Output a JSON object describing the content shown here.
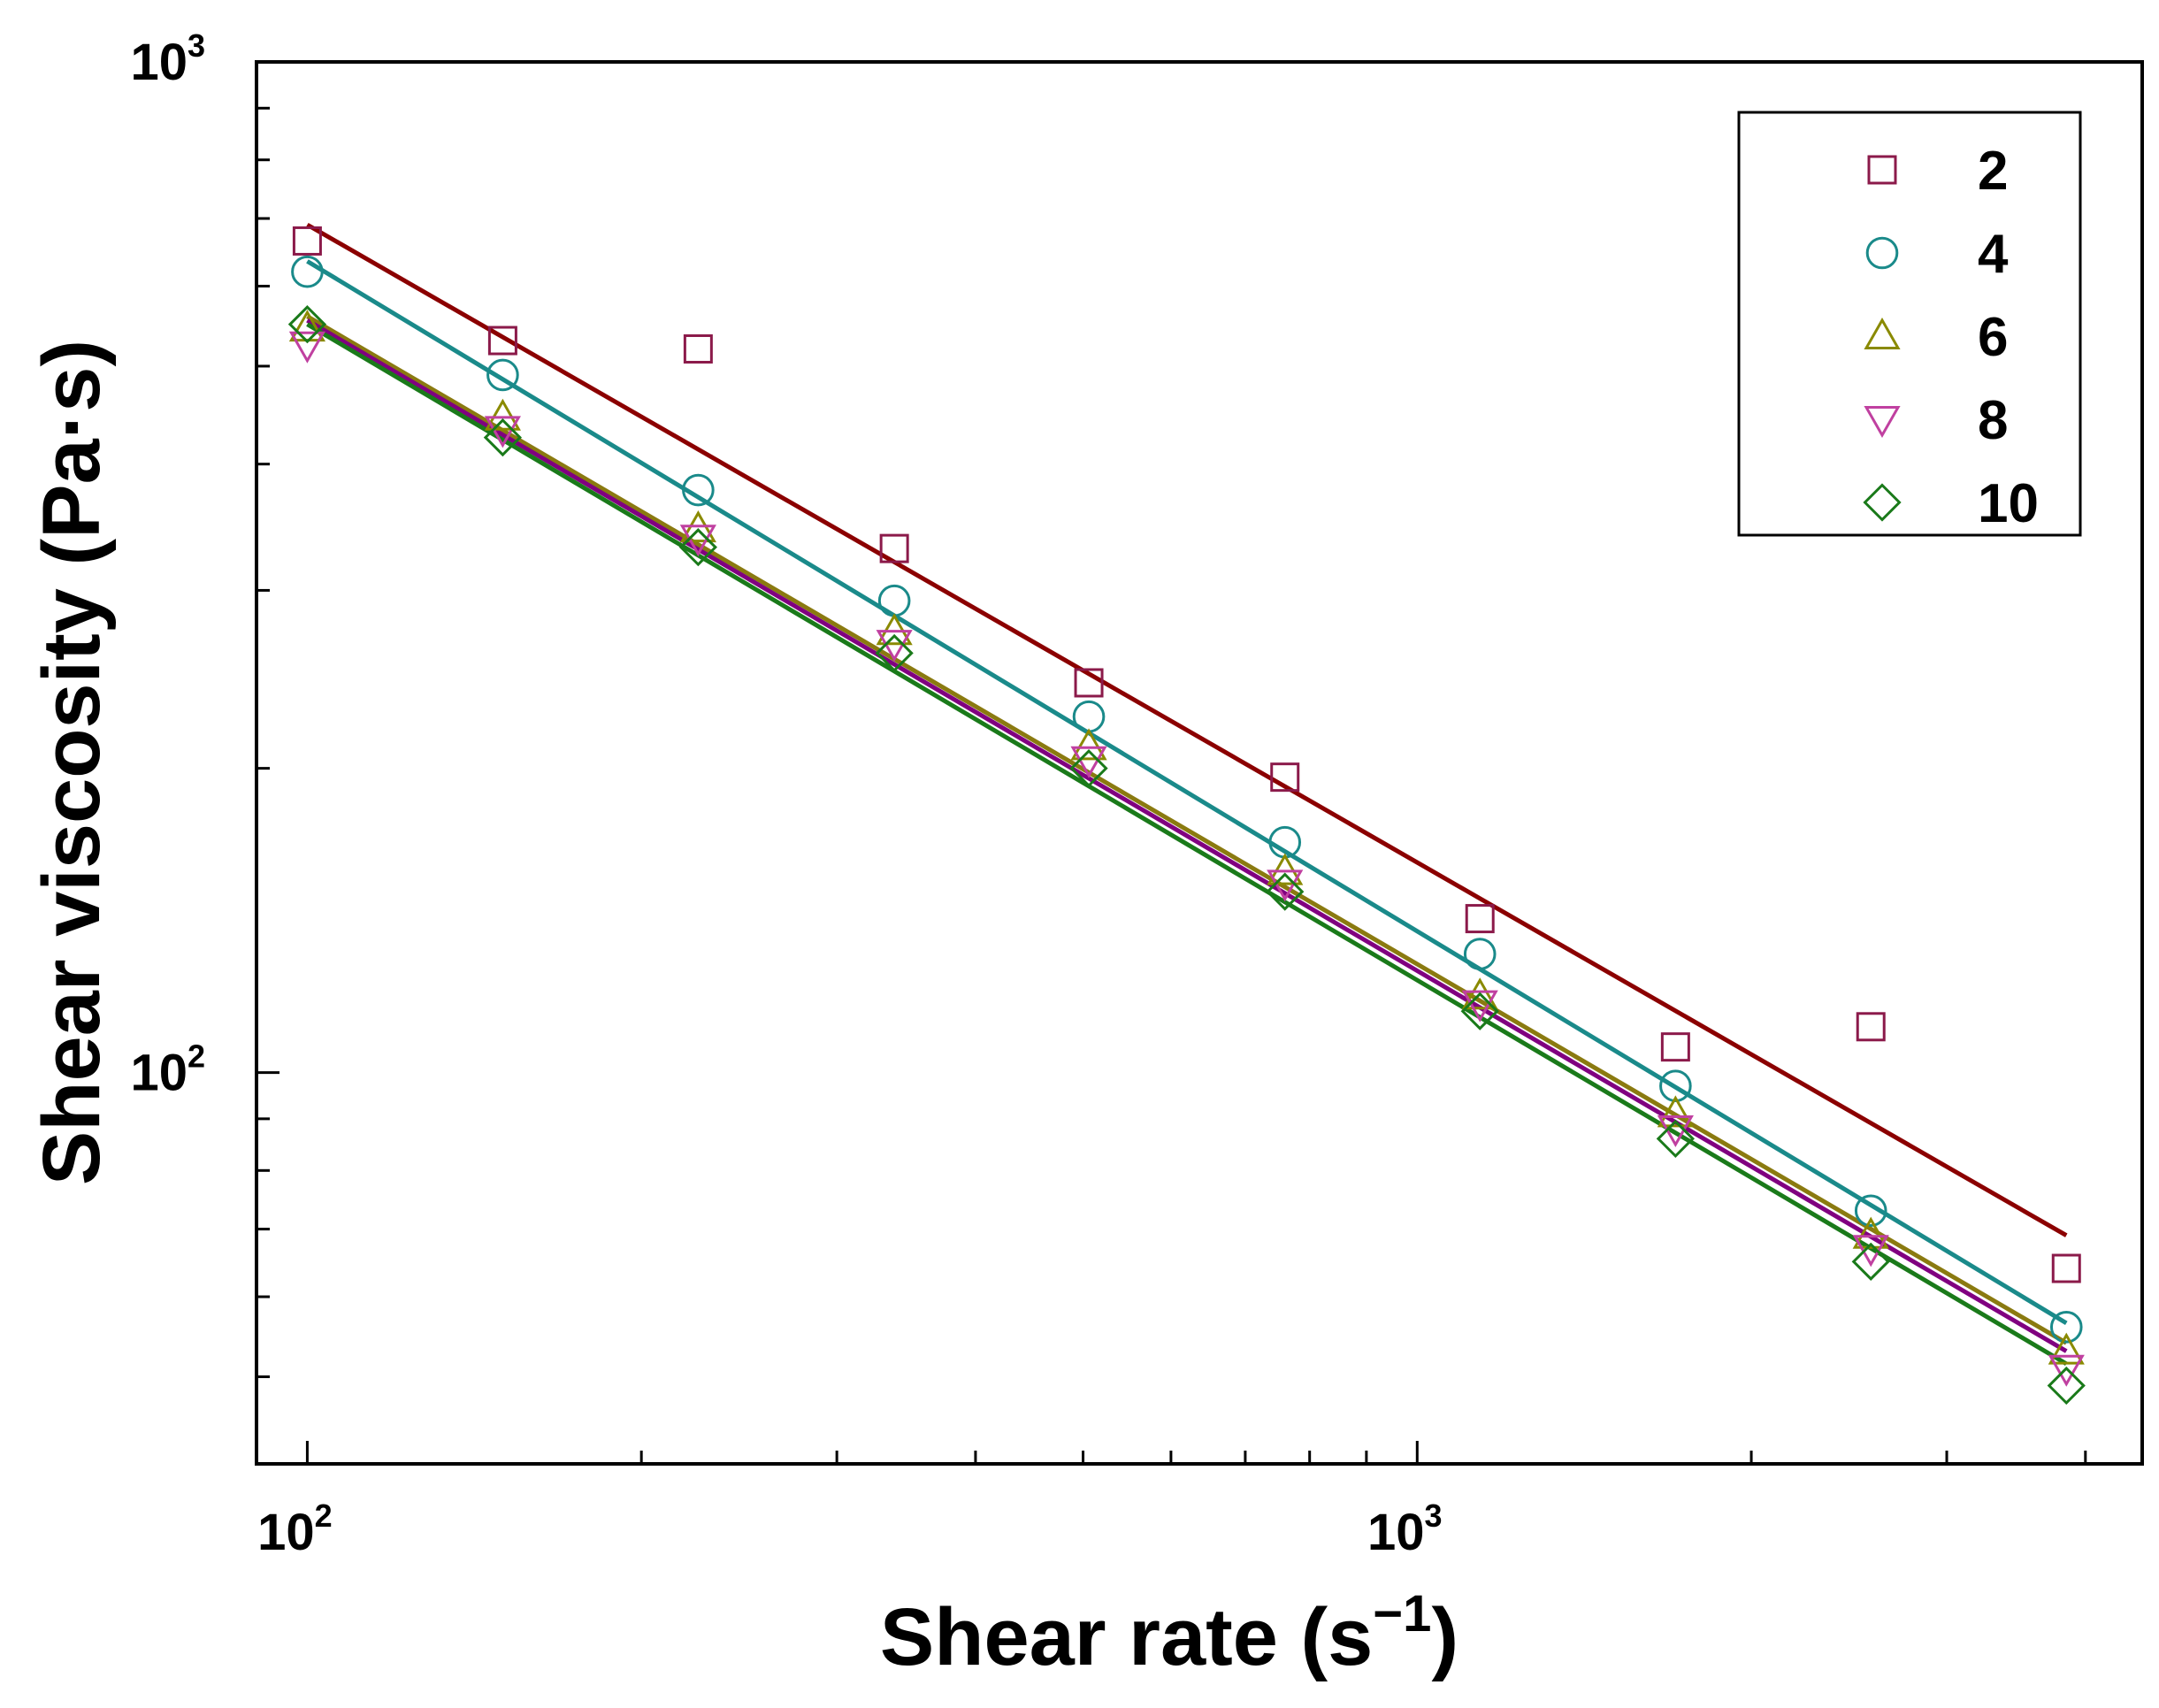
{
  "chart_data": {
    "type": "scatter",
    "xscale": "log",
    "yscale": "log",
    "xlim": [
      90,
      4500
    ],
    "ylim": [
      41,
      1000
    ],
    "xlabel_main": "Shear rate (s",
    "xlabel_sup": "−1",
    "xlabel_end": ")",
    "ylabel": "Shear viscosity (Pa·s)",
    "xticks": [
      {
        "base": "10",
        "exp": "2",
        "value": 100
      },
      {
        "base": "10",
        "exp": "3",
        "value": 1000
      }
    ],
    "yticks": [
      {
        "base": "10",
        "exp": "2",
        "value": 100
      },
      {
        "base": "10",
        "exp": "3",
        "value": 1000
      }
    ],
    "x": [
      100,
      150,
      225,
      338,
      506,
      760,
      1139,
      1709,
      2563,
      3845
    ],
    "series": [
      {
        "name": "2",
        "marker": "square",
        "color": "#8b1a4a",
        "fit_color": "#8b0000",
        "values": [
          665,
          530,
          520,
          330,
          243,
          196,
          142,
          106,
          111,
          64
        ],
        "fit": [
          690,
          69
        ]
      },
      {
        "name": "4",
        "marker": "circle",
        "color": "#1a8a8a",
        "fit_color": "#1a8a8a",
        "values": [
          620,
          490,
          377,
          293,
          225,
          169,
          131,
          97,
          73,
          56
        ],
        "fit": [
          635,
          56.5
        ]
      },
      {
        "name": "6",
        "marker": "triangle-up",
        "color": "#8a8a00",
        "fit_color": "#8a7a10",
        "values": [
          545,
          445,
          345,
          273,
          210,
          158,
          119,
          91,
          69,
          53
        ],
        "fit": [
          560,
          54
        ]
      },
      {
        "name": "8",
        "marker": "triangle-down",
        "color": "#c040a0",
        "fit_color": "#800080",
        "values": [
          525,
          433,
          338,
          266,
          204,
          154,
          117,
          88,
          67,
          51
        ],
        "fit": [
          555,
          53
        ]
      },
      {
        "name": "10",
        "marker": "diamond",
        "color": "#1a7a1a",
        "fit_color": "#1a7a1a",
        "values": [
          550,
          425,
          331,
          260,
          200,
          151,
          115,
          86,
          65,
          49
        ],
        "fit": [
          550,
          51.5
        ]
      }
    ],
    "legend_position": "top-right"
  }
}
